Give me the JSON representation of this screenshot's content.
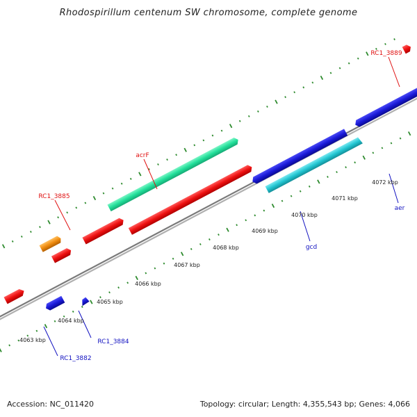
{
  "title": "Rhodospirillum centenum SW chromosome, complete genome",
  "footer": {
    "accession": "Accession: NC_011420",
    "summary": "Topology: circular; Length: 4,355,543 bp; Genes: 4,066"
  },
  "colors": {
    "backbone": "#8e8e8e",
    "tick_dot": "#2e8b2e",
    "label_red": "#e01010",
    "label_blue": "#1010c0"
  },
  "ticks": [
    {
      "label": "4063 kbp",
      "kbp": 4063
    },
    {
      "label": "4064 kbp",
      "kbp": 4064
    },
    {
      "label": "4065 kbp",
      "kbp": 4065
    },
    {
      "label": "4066 kbp",
      "kbp": 4066
    },
    {
      "label": "4067 kbp",
      "kbp": 4067
    },
    {
      "label": "4068 kbp",
      "kbp": 4068
    },
    {
      "label": "4069 kbp",
      "kbp": 4069
    },
    {
      "label": "4070 kbp",
      "kbp": 4070
    },
    {
      "label": "4071 kbp",
      "kbp": 4071
    },
    {
      "label": "4072 kbp",
      "kbp": 4072
    }
  ],
  "gene_labels": [
    {
      "text": "RC1_3889",
      "strand": "forward"
    },
    {
      "text": "acrF",
      "strand": "forward"
    },
    {
      "text": "RC1_3885",
      "strand": "forward"
    },
    {
      "text": "aer",
      "strand": "reverse"
    },
    {
      "text": "gcd",
      "strand": "reverse"
    },
    {
      "text": "RC1_3884",
      "strand": "reverse"
    },
    {
      "text": "RC1_3882",
      "strand": "reverse"
    }
  ],
  "genes": [
    {
      "name": "gene-forward-left-edge",
      "color": "#ee1111"
    },
    {
      "name": "gene-forward-orange",
      "color": "#f08c10"
    },
    {
      "name": "gene-forward-red-small",
      "color": "#ee1111"
    },
    {
      "name": "gene-rc1-3885",
      "color": "#ee1111"
    },
    {
      "name": "gene-forward-red-long",
      "color": "#ee1111"
    },
    {
      "name": "gene-acrF",
      "color": "#22e09a"
    },
    {
      "name": "gene-rc1-3889",
      "color": "#ee1111"
    },
    {
      "name": "gene-reverse-blue-left",
      "color": "#1a1ad8"
    },
    {
      "name": "gene-rc1-3884",
      "color": "#1a1ad8"
    },
    {
      "name": "gene-reverse-blue-mid",
      "color": "#1a1ad8"
    },
    {
      "name": "gene-gcd",
      "color": "#22c6d2"
    },
    {
      "name": "gene-aer",
      "color": "#1a1ad8"
    }
  ]
}
